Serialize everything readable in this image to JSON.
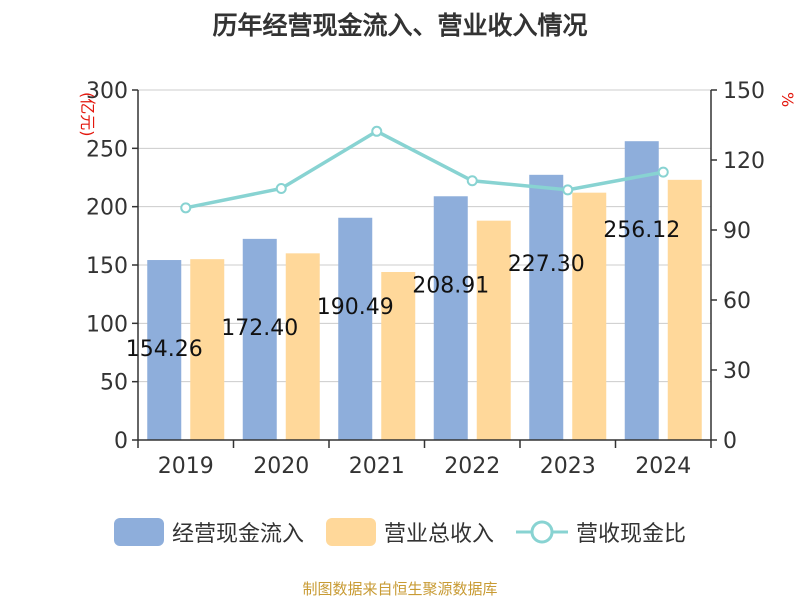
{
  "chart_data": {
    "type": "bar",
    "title": "历年经营现金流入、营业收入情况",
    "categories": [
      "2019",
      "2020",
      "2021",
      "2022",
      "2023",
      "2024"
    ],
    "series": [
      {
        "name": "经营现金流入",
        "type": "bar",
        "axis": "left",
        "color": "#8eaedb",
        "values": [
          154.26,
          172.4,
          190.49,
          208.91,
          227.3,
          256.12
        ]
      },
      {
        "name": "营业总收入",
        "type": "bar",
        "axis": "left",
        "color": "#ffd89a",
        "values": [
          155,
          160,
          144,
          188,
          212,
          223
        ]
      },
      {
        "name": "营收现金比",
        "type": "line",
        "axis": "right",
        "color": "#88d3d2",
        "values": [
          99.5,
          107.8,
          132.3,
          111.1,
          107.2,
          114.8
        ]
      }
    ],
    "data_labels": [
      "154.26",
      "172.40",
      "190.49",
      "208.91",
      "227.30",
      "256.12"
    ],
    "y_left": {
      "label": "(亿元)",
      "ylim": [
        0,
        300
      ],
      "ticks": [
        "0",
        "50",
        "100",
        "150",
        "200",
        "250",
        "300"
      ]
    },
    "y_right": {
      "label": "%",
      "ylim": [
        0,
        150
      ],
      "ticks": [
        "0",
        "30",
        "60",
        "90",
        "120",
        "150"
      ]
    },
    "grid": true,
    "legend_position": "bottom"
  },
  "legend": [
    {
      "label": "经营现金流入",
      "color": "#8eaedb",
      "kind": "bar"
    },
    {
      "label": "营业总收入",
      "color": "#ffd89a",
      "kind": "bar"
    },
    {
      "label": "营收现金比",
      "color": "#88d3d2",
      "kind": "line"
    }
  ],
  "source": "制图数据来自恒生聚源数据库"
}
